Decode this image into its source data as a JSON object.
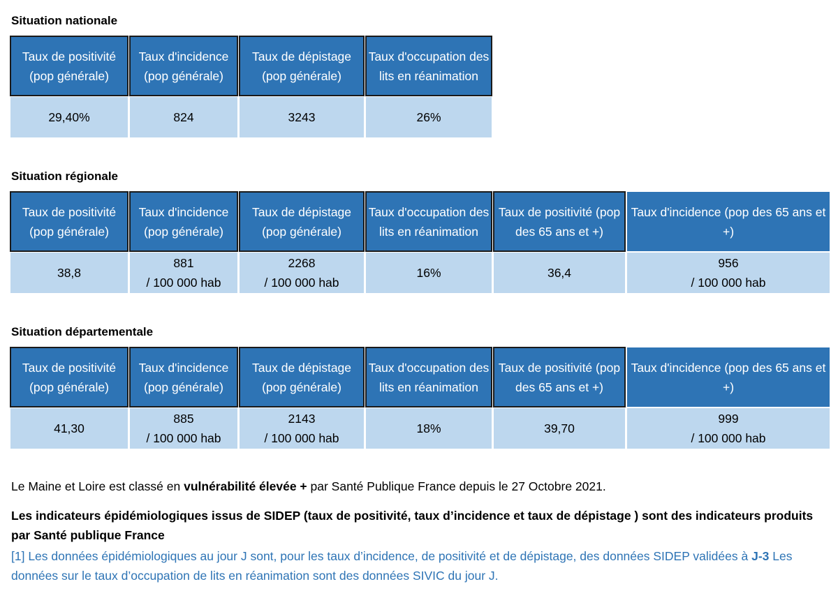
{
  "national": {
    "title": "Situation nationale",
    "headers": [
      "Taux de positivité (pop générale)",
      "Taux d'incidence (pop générale)",
      "Taux de dépistage (pop générale)",
      "Taux d'occupation des lits en réanimation"
    ],
    "values": [
      "29,40%",
      "824",
      "3243",
      "26%"
    ]
  },
  "regional": {
    "title": "Situation régionale",
    "headers": [
      "Taux de positivité (pop générale)",
      "Taux d'incidence (pop générale)",
      "Taux de dépistage (pop générale)",
      "Taux d'occupation des lits en réanimation",
      "Taux de positivité (pop des 65 ans et +)",
      "Taux d'incidence (pop des 65 ans et +)"
    ],
    "values": [
      "38,8",
      "881",
      "2268",
      "16%",
      "36,4",
      "956"
    ]
  },
  "departemental": {
    "title": "Situation départementale",
    "headers": [
      "Taux de positivité (pop générale)",
      "Taux d'incidence (pop générale)",
      "Taux de dépistage (pop générale)",
      "Taux d'occupation des lits en réanimation",
      "Taux de positivité (pop des 65 ans et +)",
      "Taux d'incidence (pop des 65 ans et +)"
    ],
    "values": [
      "41,30",
      "885",
      "2143",
      "18%",
      "39,70",
      "999"
    ]
  },
  "unit": "/ 100 000 hab",
  "notes": {
    "p1_pre": "Le Maine et Loire est classé en ",
    "p1_bold": "vulnérabilité élevée +",
    "p1_post": " par Santé Publique France depuis le 27 Octobre 2021.",
    "p2": "Les indicateurs épidémiologiques issus de SIDEP (taux de positivité, taux d’incidence et taux de dépistage ) sont des indicateurs produits par Santé publique France",
    "p3_a": "[1] Les données épidémiologiques au jour J sont, pour les taux d’incidence, de positivité et de dépistage, des données SIDEP validées à ",
    "p3_bold": "J-3",
    "p3_b": " Les données sur le taux d’occupation de lits en réanimation sont des données SIVIC du jour J."
  },
  "colors": {
    "header": "#2e74b5",
    "cell": "#bdd7ee",
    "link": "#2e74b5"
  }
}
